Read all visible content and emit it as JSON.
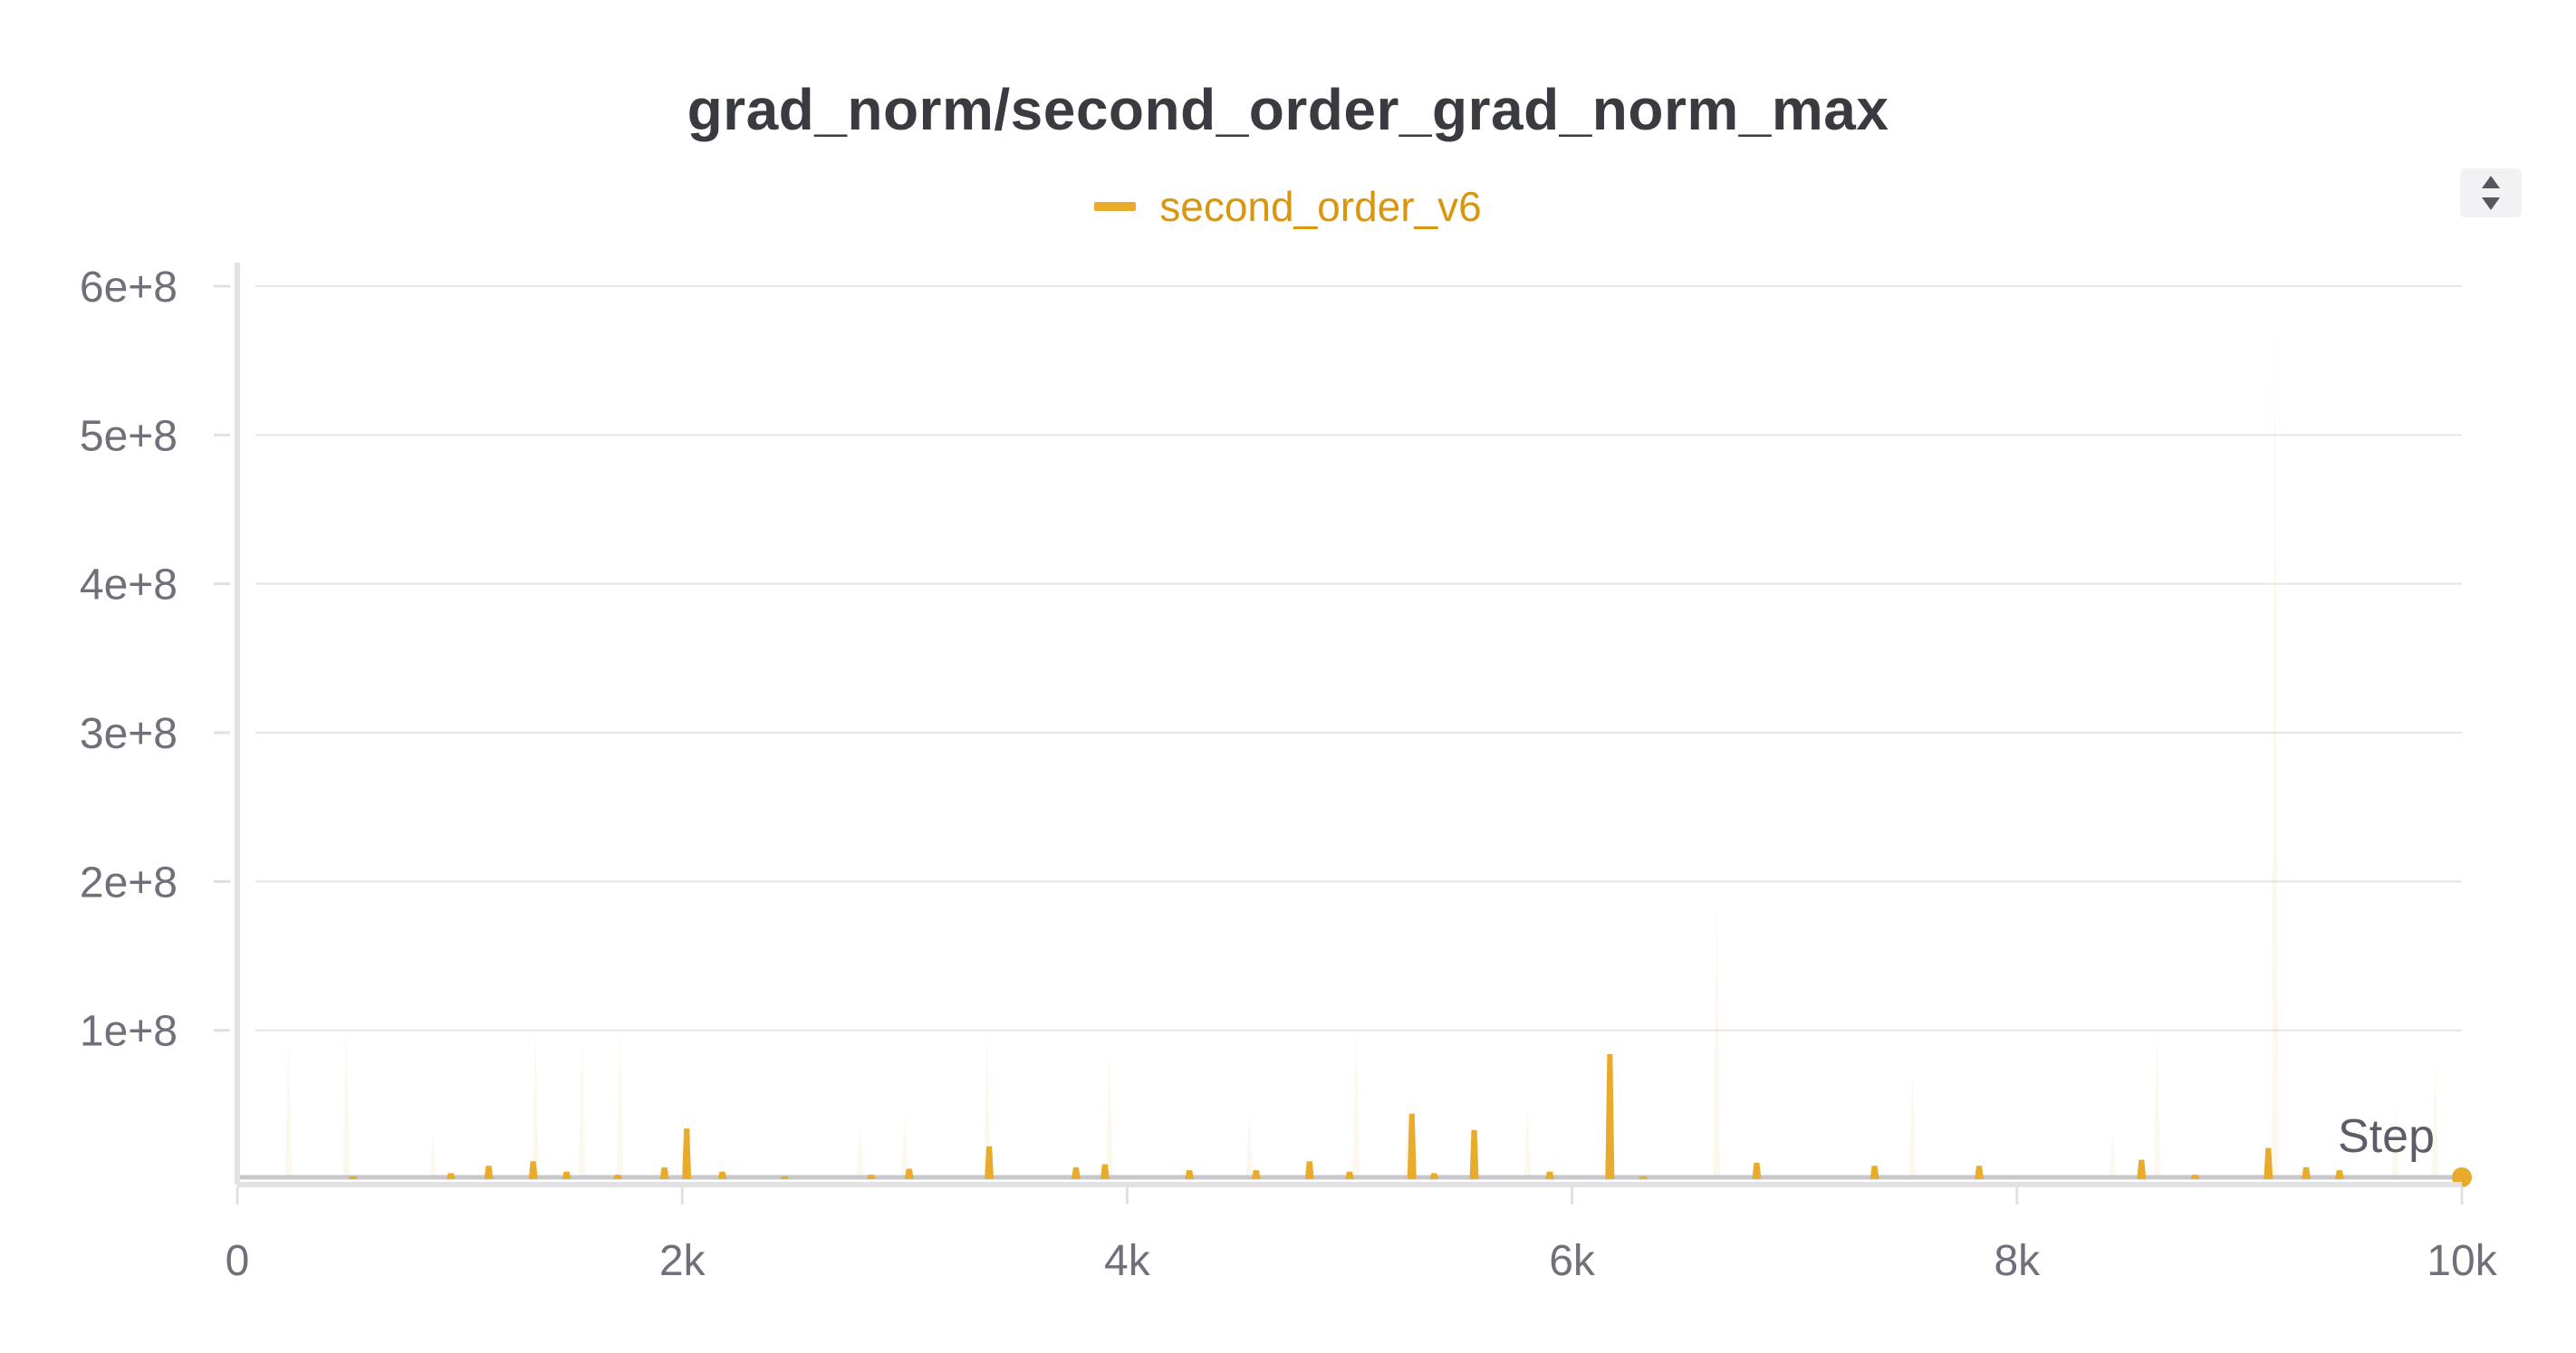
{
  "chart_data": {
    "type": "area",
    "title": "grad_norm/second_order_grad_norm_max",
    "xlabel": "Step",
    "ylabel": "",
    "xlim": [
      0,
      10000
    ],
    "ylim": [
      0,
      600000000
    ],
    "x_ticks": [
      0,
      2000,
      4000,
      6000,
      8000,
      10000
    ],
    "x_tick_labels": [
      "0",
      "2k",
      "4k",
      "6k",
      "8k",
      "10k"
    ],
    "y_ticks": [
      100000000,
      200000000,
      300000000,
      400000000,
      500000000,
      600000000
    ],
    "y_tick_labels": [
      "1e+8",
      "2e+8",
      "3e+8",
      "4e+8",
      "5e+8",
      "6e+8"
    ],
    "grid": true,
    "legend_position": "top-center",
    "series": [
      {
        "name": "second_order_v6",
        "color": "#e8ab2c",
        "spikes": [
          {
            "x": 520,
            "y": 2000000
          },
          {
            "x": 960,
            "y": 4000000
          },
          {
            "x": 1130,
            "y": 9000000
          },
          {
            "x": 1330,
            "y": 12000000
          },
          {
            "x": 1480,
            "y": 5000000
          },
          {
            "x": 1710,
            "y": 3000000
          },
          {
            "x": 1920,
            "y": 8000000
          },
          {
            "x": 2020,
            "y": 34000000
          },
          {
            "x": 2180,
            "y": 5000000
          },
          {
            "x": 2460,
            "y": 2000000
          },
          {
            "x": 2850,
            "y": 3000000
          },
          {
            "x": 3020,
            "y": 7000000
          },
          {
            "x": 3380,
            "y": 22000000
          },
          {
            "x": 3770,
            "y": 8000000
          },
          {
            "x": 3900,
            "y": 10000000
          },
          {
            "x": 4280,
            "y": 6000000
          },
          {
            "x": 4580,
            "y": 6000000
          },
          {
            "x": 4820,
            "y": 12000000
          },
          {
            "x": 5000,
            "y": 5000000
          },
          {
            "x": 5280,
            "y": 44000000
          },
          {
            "x": 5380,
            "y": 4000000
          },
          {
            "x": 5560,
            "y": 33000000
          },
          {
            "x": 5900,
            "y": 5000000
          },
          {
            "x": 6170,
            "y": 84000000
          },
          {
            "x": 6320,
            "y": 2000000
          },
          {
            "x": 6830,
            "y": 11000000
          },
          {
            "x": 7360,
            "y": 9000000
          },
          {
            "x": 7830,
            "y": 9000000
          },
          {
            "x": 8560,
            "y": 13000000
          },
          {
            "x": 8800,
            "y": 3000000
          },
          {
            "x": 9130,
            "y": 21000000
          },
          {
            "x": 9300,
            "y": 8000000
          },
          {
            "x": 9450,
            "y": 6000000
          }
        ],
        "raw_spikes": [
          {
            "x": 230,
            "y": 95000000
          },
          {
            "x": 490,
            "y": 100000000
          },
          {
            "x": 880,
            "y": 30000000
          },
          {
            "x": 1340,
            "y": 100000000
          },
          {
            "x": 1550,
            "y": 95000000
          },
          {
            "x": 1720,
            "y": 100000000
          },
          {
            "x": 2800,
            "y": 35000000
          },
          {
            "x": 3000,
            "y": 45000000
          },
          {
            "x": 3370,
            "y": 100000000
          },
          {
            "x": 3920,
            "y": 90000000
          },
          {
            "x": 4550,
            "y": 45000000
          },
          {
            "x": 5030,
            "y": 100000000
          },
          {
            "x": 5260,
            "y": 55000000
          },
          {
            "x": 5800,
            "y": 50000000
          },
          {
            "x": 6650,
            "y": 190000000
          },
          {
            "x": 7530,
            "y": 70000000
          },
          {
            "x": 8430,
            "y": 30000000
          },
          {
            "x": 8630,
            "y": 100000000
          },
          {
            "x": 9160,
            "y": 590000000
          },
          {
            "x": 9700,
            "y": 50000000
          },
          {
            "x": 9880,
            "y": 80000000
          }
        ],
        "last_point": {
          "x": 10000,
          "y": 0
        }
      }
    ]
  },
  "ui": {
    "sort_toggle_icon": "sort-up-down-icon"
  }
}
